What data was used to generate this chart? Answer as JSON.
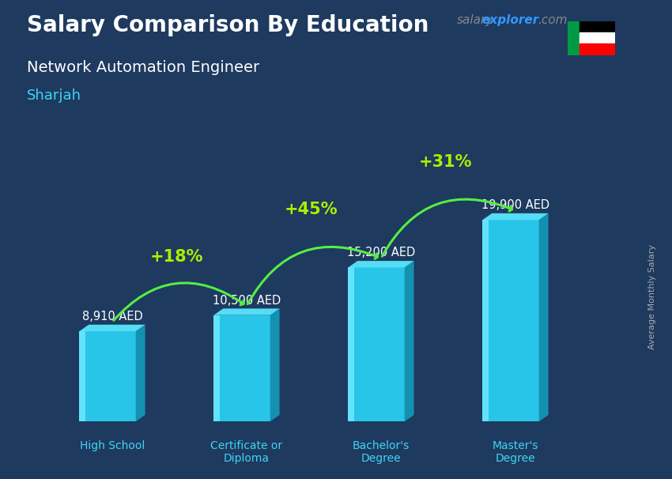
{
  "title": "Salary Comparison By Education",
  "subtitle": "Network Automation Engineer",
  "location": "Sharjah",
  "watermark_salary": "salary",
  "watermark_explorer": "explorer",
  "watermark_com": ".com",
  "ylabel": "Average Monthly Salary",
  "categories": [
    "High School",
    "Certificate or\nDiploma",
    "Bachelor's\nDegree",
    "Master's\nDegree"
  ],
  "values": [
    8910,
    10500,
    15200,
    19900
  ],
  "value_labels": [
    "8,910 AED",
    "10,500 AED",
    "15,200 AED",
    "19,900 AED"
  ],
  "pct_changes": [
    "+18%",
    "+45%",
    "+31%"
  ],
  "bar_front": "#29c5e8",
  "bar_highlight": "#6ee8ff",
  "bar_side": "#1490b0",
  "bar_top": "#55ddf5",
  "bg_color": "#1e3a5f",
  "title_color": "#ffffff",
  "subtitle_color": "#ffffff",
  "location_color": "#3dd6f5",
  "tick_label_color": "#3dd6f5",
  "value_label_color": "#ffffff",
  "pct_color": "#aaee00",
  "arrow_color": "#55ee44",
  "watermark_salary_color": "#888888",
  "watermark_explorer_color": "#3399ff",
  "watermark_com_color": "#888888",
  "ylabel_color": "#aaaaaa",
  "ylim": [
    0,
    26000
  ],
  "figwidth": 8.5,
  "figheight": 6.06,
  "dpi": 100
}
